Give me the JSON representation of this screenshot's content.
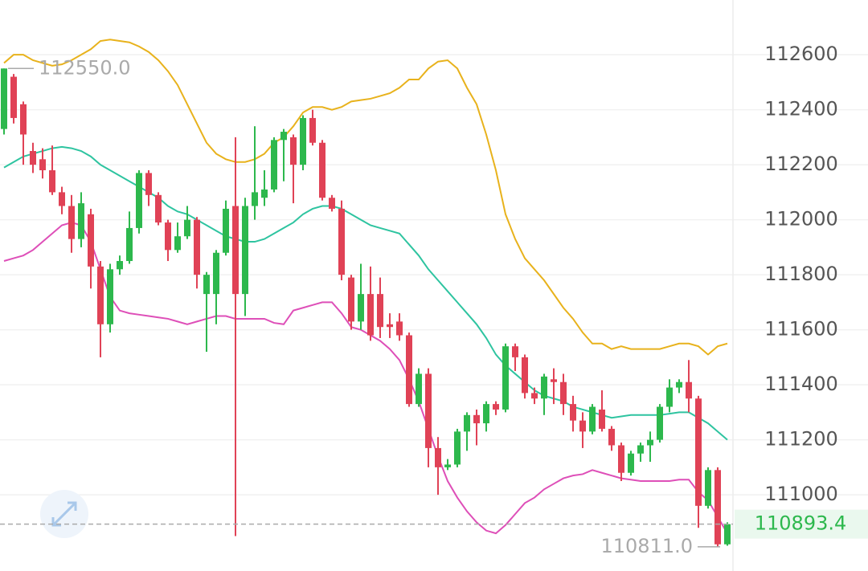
{
  "chart_data": {
    "type": "candlestick",
    "ylim": [
      110723,
      112799
    ],
    "yticks": [
      111000,
      111200,
      111400,
      111600,
      111800,
      112000,
      112200,
      112400,
      112600
    ],
    "grid": true,
    "up_color": "#2db84d",
    "down_color": "#e04256",
    "open": [
      112330,
      112520,
      112420,
      112250,
      112220,
      112180,
      112100,
      112050,
      111930,
      112020,
      111830,
      111620,
      111820,
      111850,
      111970,
      112170,
      112090,
      111990,
      111890,
      111940,
      112000,
      111730,
      111730,
      111880,
      112050,
      111730,
      112050,
      112080,
      112110,
      112290,
      112300,
      112200,
      112370,
      112280,
      112080,
      112040,
      111790,
      111630,
      111730,
      111730,
      111620,
      111630,
      111580,
      111330,
      111440,
      111170,
      111100,
      111110,
      111230,
      111290,
      111260,
      111330,
      111310,
      111540,
      111500,
      111370,
      111350,
      111420,
      111410,
      111330,
      111270,
      111230,
      111310,
      111240,
      111180,
      111080,
      111150,
      111180,
      111200,
      111320,
      111390,
      111410,
      111350,
      110960,
      111090,
      110820
    ],
    "high": [
      112550,
      112530,
      112430,
      112280,
      112260,
      112270,
      112120,
      112090,
      112100,
      112040,
      111850,
      111840,
      111870,
      112030,
      112180,
      112180,
      112100,
      112000,
      111990,
      112050,
      112010,
      111810,
      111890,
      112070,
      112300,
      112080,
      112340,
      112180,
      112300,
      112330,
      112310,
      112380,
      112400,
      112290,
      112090,
      112070,
      111800,
      111840,
      111830,
      111790,
      111660,
      111660,
      111590,
      111460,
      111460,
      111210,
      111130,
      111240,
      111300,
      111310,
      111340,
      111340,
      111550,
      111550,
      111510,
      111390,
      111440,
      111460,
      111440,
      111360,
      111300,
      111330,
      111380,
      111250,
      111190,
      111160,
      111190,
      111230,
      111330,
      111420,
      111420,
      111490,
      111360,
      111100,
      111100,
      110900
    ],
    "low": [
      112310,
      112350,
      112200,
      112170,
      112150,
      112090,
      112020,
      111880,
      111900,
      111750,
      111500,
      111590,
      111800,
      111840,
      111950,
      112050,
      111980,
      111850,
      111880,
      111930,
      111750,
      111520,
      111620,
      111870,
      110850,
      111650,
      112000,
      112050,
      112100,
      112140,
      112060,
      112180,
      112270,
      112070,
      112030,
      111780,
      111600,
      111600,
      111560,
      111570,
      111570,
      111560,
      111320,
      111320,
      111100,
      111000,
      111090,
      111100,
      111160,
      111180,
      111230,
      111290,
      111300,
      111450,
      111350,
      111330,
      111290,
      111330,
      111290,
      111230,
      111170,
      111220,
      111230,
      111160,
      111050,
      111070,
      111120,
      111120,
      111190,
      111300,
      111370,
      111300,
      110880,
      110950,
      110811,
      110815
    ],
    "close": [
      112550,
      112370,
      112310,
      112200,
      112180,
      112100,
      112050,
      111930,
      112060,
      111830,
      111620,
      111820,
      111850,
      111970,
      112170,
      112090,
      111990,
      111890,
      111940,
      112000,
      111800,
      111800,
      111880,
      112040,
      111730,
      112050,
      112100,
      112110,
      112290,
      112320,
      112200,
      112370,
      112280,
      112080,
      112040,
      111800,
      111630,
      111730,
      111580,
      111610,
      111610,
      111580,
      111330,
      111440,
      111170,
      111100,
      111110,
      111230,
      111290,
      111260,
      111330,
      111310,
      111540,
      111500,
      111370,
      111350,
      111430,
      111410,
      111330,
      111270,
      111230,
      111320,
      111240,
      111180,
      111080,
      111150,
      111180,
      111200,
      111320,
      111390,
      111410,
      111350,
      110960,
      111090,
      110820,
      110893.4
    ],
    "lines": [
      {
        "color": "#e8b21c",
        "values": [
          112570,
          112600,
          112600,
          112580,
          112570,
          112560,
          112565,
          112580,
          112600,
          112620,
          112650,
          112655,
          112650,
          112645,
          112630,
          112610,
          112580,
          112540,
          112490,
          112420,
          112350,
          112280,
          112240,
          112220,
          112210,
          112210,
          112220,
          112240,
          112280,
          112300,
          112340,
          112390,
          112410,
          112410,
          112400,
          112410,
          112430,
          112435,
          112440,
          112450,
          112460,
          112480,
          112510,
          112510,
          112550,
          112575,
          112580,
          112550,
          112480,
          112420,
          112310,
          112180,
          112020,
          111930,
          111860,
          111820,
          111780,
          111730,
          111680,
          111640,
          111590,
          111550,
          111550,
          111530,
          111540,
          111530,
          111530,
          111530,
          111530,
          111540,
          111550,
          111550,
          111540,
          111510,
          111540,
          111550
        ]
      },
      {
        "color": "#2ec4a0",
        "values": [
          112190,
          112210,
          112230,
          112240,
          112250,
          112260,
          112265,
          112260,
          112250,
          112230,
          112200,
          112180,
          112160,
          112140,
          112120,
          112100,
          112080,
          112050,
          112030,
          112020,
          112000,
          111980,
          111960,
          111940,
          111930,
          111920,
          111920,
          111930,
          111950,
          111970,
          111990,
          112020,
          112040,
          112050,
          112050,
          112040,
          112020,
          112000,
          111980,
          111970,
          111960,
          111950,
          111910,
          111870,
          111820,
          111780,
          111740,
          111700,
          111660,
          111620,
          111570,
          111510,
          111470,
          111440,
          111410,
          111380,
          111360,
          111350,
          111340,
          111320,
          111310,
          111300,
          111290,
          111280,
          111285,
          111290,
          111290,
          111290,
          111290,
          111295,
          111300,
          111300,
          111280,
          111260,
          111230,
          111200
        ]
      },
      {
        "color": "#de4fb8",
        "values": [
          111850,
          111860,
          111870,
          111890,
          111920,
          111950,
          111980,
          111990,
          111980,
          111920,
          111820,
          111720,
          111670,
          111660,
          111655,
          111650,
          111645,
          111640,
          111630,
          111620,
          111630,
          111640,
          111650,
          111650,
          111640,
          111640,
          111640,
          111640,
          111625,
          111620,
          111670,
          111680,
          111690,
          111700,
          111700,
          111660,
          111610,
          111600,
          111580,
          111560,
          111530,
          111490,
          111420,
          111340,
          111240,
          111140,
          111050,
          110990,
          110940,
          110900,
          110870,
          110860,
          110890,
          110930,
          110970,
          110990,
          111020,
          111040,
          111060,
          111070,
          111075,
          111090,
          111080,
          111070,
          111060,
          111055,
          111050,
          111050,
          111050,
          111050,
          111055,
          111055,
          111010,
          110980,
          110920,
          110860
        ]
      }
    ],
    "annotations": {
      "high": {
        "value": 112550,
        "label": "112550.0"
      },
      "low": {
        "value": 110811,
        "label": "110811.0"
      },
      "last": {
        "value": 110893.4,
        "label": "110893.4"
      }
    }
  }
}
